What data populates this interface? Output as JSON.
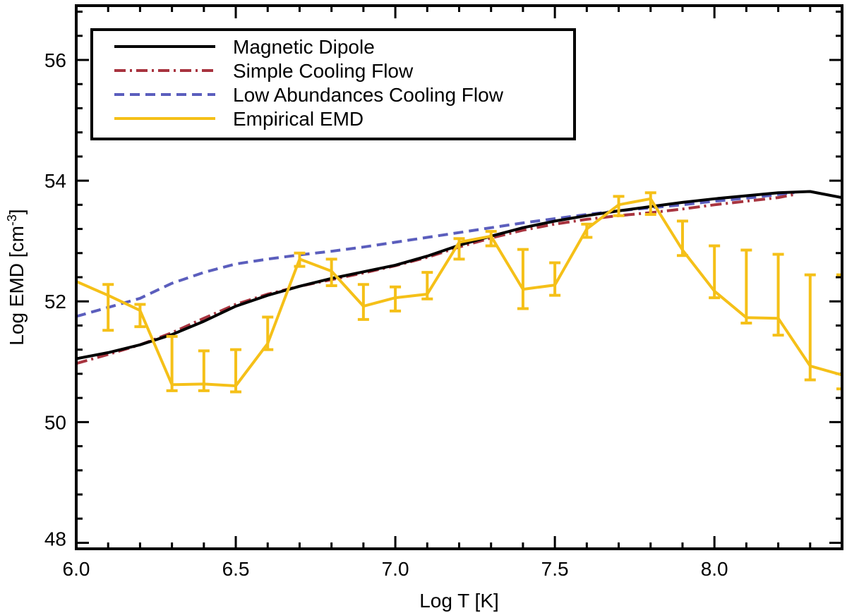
{
  "chart_data": {
    "type": "line",
    "title": "",
    "xlabel": "Log T [K]",
    "ylabel": {
      "main": "Log EMD [cm",
      "sup": "-3",
      "end": "]"
    },
    "xlim": [
      6.0,
      8.4
    ],
    "ylim": [
      47.9,
      56.9
    ],
    "xticks": [
      6.0,
      6.5,
      7.0,
      7.5,
      8.0
    ],
    "xtick_labels": [
      "6.0",
      "6.5",
      "7.0",
      "7.5",
      "8.0"
    ],
    "yticks": [
      48,
      50,
      52,
      54,
      56
    ],
    "ytick_labels": [
      "48",
      "50",
      "52",
      "54",
      "56"
    ],
    "legend_position": "top-left",
    "series": [
      {
        "name": "Magnetic Dipole",
        "color": "#000000",
        "style": "solid",
        "x": [
          6.0,
          6.1,
          6.2,
          6.3,
          6.4,
          6.5,
          6.6,
          6.7,
          6.8,
          6.9,
          7.0,
          7.1,
          7.2,
          7.3,
          7.4,
          7.5,
          7.6,
          7.7,
          7.8,
          7.9,
          8.0,
          8.1,
          8.2,
          8.3,
          8.4
        ],
        "values": [
          51.05,
          51.15,
          51.28,
          51.45,
          51.67,
          51.92,
          52.1,
          52.25,
          52.38,
          52.49,
          52.6,
          52.75,
          52.93,
          53.08,
          53.22,
          53.33,
          53.42,
          53.5,
          53.57,
          53.64,
          53.7,
          53.75,
          53.8,
          53.82,
          53.72
        ]
      },
      {
        "name": "Simple Cooling Flow",
        "color": "#A8343F",
        "style": "dashdot",
        "x": [
          6.0,
          6.1,
          6.2,
          6.3,
          6.4,
          6.5,
          6.6,
          6.7,
          6.8,
          6.9,
          7.0,
          7.1,
          7.2,
          7.3,
          7.4,
          7.5,
          7.6,
          7.7,
          7.8,
          7.9,
          8.0,
          8.1,
          8.2,
          8.25
        ],
        "values": [
          50.97,
          51.12,
          51.28,
          51.48,
          51.72,
          51.95,
          52.12,
          52.25,
          52.36,
          52.47,
          52.59,
          52.73,
          52.9,
          53.05,
          53.18,
          53.28,
          53.36,
          53.42,
          53.47,
          53.53,
          53.6,
          53.66,
          53.72,
          53.77
        ]
      },
      {
        "name": "Low Abundances Cooling Flow",
        "color": "#5B5EBD",
        "style": "dashed",
        "x": [
          6.0,
          6.1,
          6.2,
          6.3,
          6.4,
          6.5,
          6.6,
          6.7,
          6.8,
          6.9,
          7.0,
          7.1,
          7.2,
          7.3,
          7.4,
          7.5,
          7.6,
          7.7,
          7.8,
          7.9,
          8.0,
          8.1,
          8.2,
          8.25
        ],
        "values": [
          51.75,
          51.9,
          52.05,
          52.3,
          52.48,
          52.62,
          52.7,
          52.77,
          52.83,
          52.9,
          52.98,
          53.06,
          53.14,
          53.22,
          53.3,
          53.37,
          53.44,
          53.5,
          53.55,
          53.6,
          53.66,
          53.71,
          53.77,
          53.8
        ]
      },
      {
        "name": "Empirical EMD",
        "color": "#F5C018",
        "style": "solid",
        "x": [
          6.0,
          6.1,
          6.2,
          6.3,
          6.4,
          6.5,
          6.6,
          6.7,
          6.8,
          6.9,
          7.0,
          7.1,
          7.2,
          7.3,
          7.4,
          7.5,
          7.6,
          7.7,
          7.8,
          7.9,
          8.0,
          8.1,
          8.2,
          8.3,
          8.4
        ],
        "values": [
          52.33,
          52.1,
          51.85,
          50.62,
          50.63,
          50.6,
          51.3,
          52.7,
          52.5,
          51.92,
          52.06,
          52.12,
          52.98,
          53.08,
          52.2,
          52.27,
          53.2,
          53.6,
          53.7,
          52.85,
          52.17,
          51.73,
          51.72,
          50.93,
          50.78
        ],
        "error_upper": [
          null,
          52.28,
          51.95,
          51.42,
          51.18,
          51.2,
          51.74,
          52.8,
          52.7,
          52.28,
          52.24,
          52.48,
          53.04,
          53.16,
          52.86,
          52.64,
          53.28,
          53.74,
          53.8,
          53.33,
          52.92,
          52.85,
          52.78,
          52.44,
          52.44
        ],
        "error_lower": [
          null,
          51.52,
          51.58,
          50.52,
          50.52,
          50.5,
          51.2,
          52.58,
          52.26,
          51.7,
          51.84,
          52.04,
          52.7,
          52.92,
          51.88,
          52.1,
          53.06,
          53.42,
          53.44,
          52.76,
          52.06,
          51.64,
          51.44,
          50.7,
          50.55
        ]
      }
    ]
  }
}
